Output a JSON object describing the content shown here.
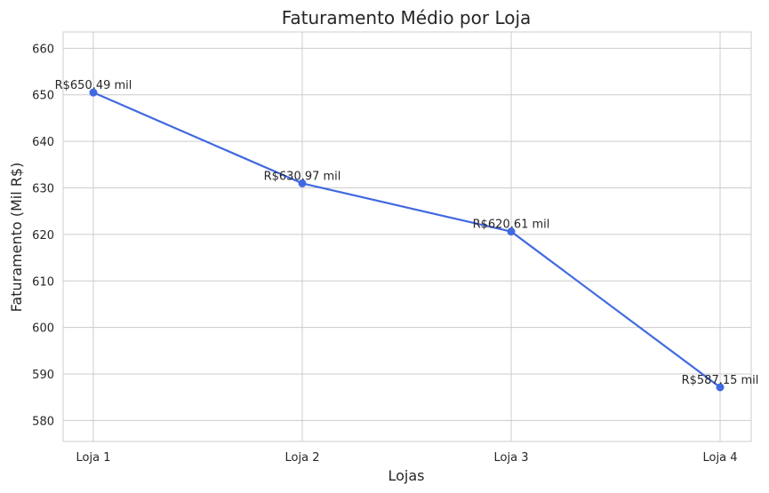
{
  "chart_data": {
    "type": "line",
    "title": "Faturamento Médio por Loja",
    "xlabel": "Lojas",
    "ylabel": "Faturamento (Mil R$)",
    "categories": [
      "Loja 1",
      "Loja 2",
      "Loja 3",
      "Loja 4"
    ],
    "series": [
      {
        "values": [
          650.49,
          630.97,
          620.61,
          587.15
        ],
        "color": "#4169e1"
      }
    ],
    "data_labels": [
      "R$650.49 mil",
      "R$630.97 mil",
      "R$620.61 mil",
      "R$587.15 mil"
    ],
    "ylim": [
      575.5,
      663.5
    ],
    "yticks": [
      580,
      590,
      600,
      610,
      620,
      630,
      640,
      650,
      660
    ],
    "grid": true,
    "legend": "none"
  }
}
